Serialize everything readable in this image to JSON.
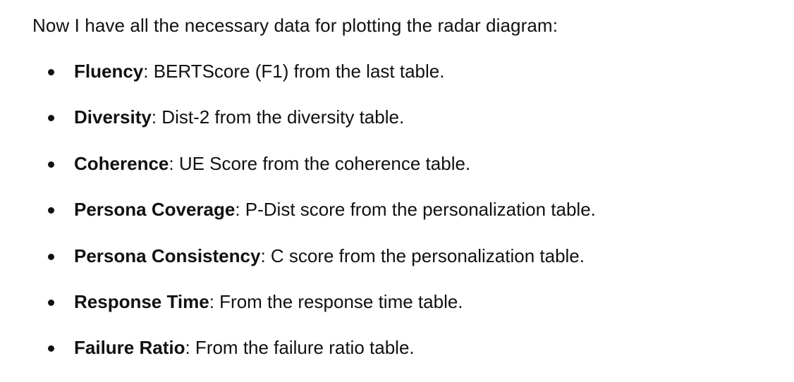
{
  "message": {
    "intro": "Now I have all the necessary data for plotting the radar diagram:",
    "items": [
      {
        "term": "Fluency",
        "description": ": BERTScore (F1) from the last table."
      },
      {
        "term": "Diversity",
        "description": ": Dist-2 from the diversity table."
      },
      {
        "term": "Coherence",
        "description": ": UE Score from the coherence table."
      },
      {
        "term": "Persona Coverage",
        "description": ": P-Dist score from the personalization table."
      },
      {
        "term": "Persona Consistency",
        "description": ": C score from the personalization table."
      },
      {
        "term": "Response Time",
        "description": ": From the response time table."
      },
      {
        "term": "Failure Ratio",
        "description": ": From the failure ratio table."
      }
    ]
  }
}
